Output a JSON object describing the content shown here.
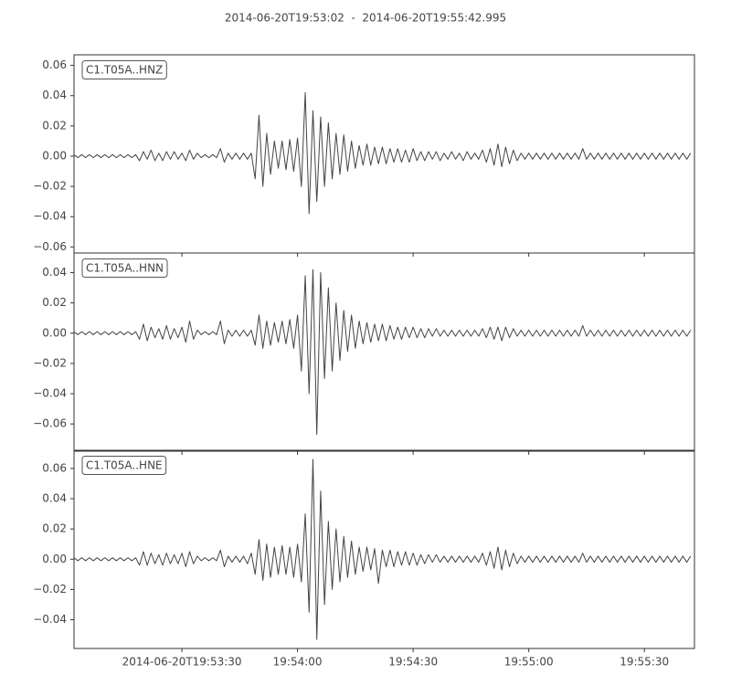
{
  "title": "2014-06-20T19:53:02  -  2014-06-20T19:55:42.995",
  "x": [
    0,
    1,
    2,
    3,
    4,
    5,
    6,
    7,
    8,
    9,
    10,
    11,
    12,
    13,
    14,
    15,
    16,
    17,
    18,
    19,
    20,
    21,
    22,
    23,
    24,
    25,
    26,
    27,
    28,
    29,
    30,
    31,
    32,
    33,
    34,
    35,
    36,
    37,
    38,
    39,
    40,
    41,
    42,
    43,
    44,
    45,
    46,
    47,
    48,
    49,
    50,
    51,
    52,
    53,
    54,
    55,
    56,
    57,
    58,
    59,
    60,
    61,
    62,
    63,
    64,
    65,
    66,
    67,
    68,
    69,
    70,
    71,
    72,
    73,
    74,
    75,
    76,
    77,
    78,
    79,
    80,
    81,
    82,
    83,
    84,
    85,
    86,
    87,
    88,
    89,
    90,
    91,
    92,
    93,
    94,
    95,
    96,
    97,
    98,
    99,
    100,
    101,
    102,
    103,
    104,
    105,
    106,
    107,
    108,
    109,
    110,
    111,
    112,
    113,
    114,
    115,
    116,
    117,
    118,
    119,
    120,
    121,
    122,
    123,
    124,
    125,
    126,
    127,
    128,
    129,
    130,
    131,
    132,
    133,
    134,
    135,
    136,
    137,
    138,
    139,
    140,
    141,
    142,
    143,
    144,
    145,
    146,
    147,
    148,
    149,
    150,
    151,
    152,
    153,
    154,
    155,
    156,
    157,
    158,
    159,
    160
  ],
  "xlim": [
    0,
    160.995
  ],
  "xticks": [
    {
      "value": 28,
      "label": "2014-06-20T19:53:30"
    },
    {
      "value": 58,
      "label": "19:54:00"
    },
    {
      "value": 88,
      "label": "19:54:30"
    },
    {
      "value": 118,
      "label": "19:55:00"
    },
    {
      "value": 148,
      "label": "19:55:30"
    }
  ],
  "chart_data": [
    {
      "type": "line",
      "ylim": [
        -0.064,
        0.067
      ],
      "yticks": [
        {
          "value": -0.06,
          "label": "−0.06"
        },
        {
          "value": -0.04,
          "label": "−0.04"
        },
        {
          "value": -0.02,
          "label": "−0.02"
        },
        {
          "value": 0,
          "label": "0.00"
        },
        0.02,
        0.04,
        0.06
      ],
      "series": [
        {
          "name": "C1.T05A..HNZ",
          "color": "#444444",
          "values": [
            0.001,
            -0.001,
            0.001,
            -0.001,
            0.001,
            -0.001,
            0.001,
            -0.001,
            0.001,
            -0.001,
            0.001,
            -0.001,
            0.001,
            -0.001,
            0.001,
            -0.001,
            0.001,
            -0.003,
            0.003,
            -0.002,
            0.004,
            -0.003,
            0.002,
            -0.003,
            0.003,
            -0.002,
            0.003,
            -0.002,
            0.002,
            -0.003,
            0.004,
            -0.002,
            0.002,
            -0.001,
            0.001,
            -0.001,
            0.001,
            -0.001,
            0.005,
            -0.004,
            0.002,
            -0.002,
            0.002,
            -0.002,
            0.002,
            -0.002,
            0.002,
            -0.015,
            0.027,
            -0.02,
            0.015,
            -0.012,
            0.01,
            -0.008,
            0.01,
            -0.009,
            0.011,
            -0.01,
            0.012,
            -0.02,
            0.042,
            -0.038,
            0.03,
            -0.03,
            0.026,
            -0.02,
            0.022,
            -0.015,
            0.015,
            -0.012,
            0.014,
            -0.01,
            0.01,
            -0.008,
            0.007,
            -0.006,
            0.008,
            -0.006,
            0.006,
            -0.005,
            0.006,
            -0.005,
            0.005,
            -0.004,
            0.005,
            -0.004,
            0.004,
            -0.004,
            0.005,
            -0.003,
            0.003,
            -0.003,
            0.003,
            -0.002,
            0.003,
            -0.003,
            0.002,
            -0.002,
            0.003,
            -0.002,
            0.002,
            -0.003,
            0.003,
            -0.002,
            0.002,
            -0.002,
            0.004,
            -0.004,
            0.005,
            -0.006,
            0.008,
            -0.007,
            0.006,
            -0.005,
            0.004,
            -0.003,
            0.002,
            -0.002,
            0.002,
            -0.002,
            0.002,
            -0.002,
            0.002,
            -0.002,
            0.002,
            -0.002,
            0.002,
            -0.002,
            0.002,
            -0.002,
            0.002,
            -0.002,
            0.005,
            -0.002,
            0.002,
            -0.002,
            0.002,
            -0.002,
            0.002,
            -0.002,
            0.002,
            -0.002,
            0.002,
            -0.002,
            0.002,
            -0.002,
            0.002,
            -0.002,
            0.002,
            -0.002,
            0.002,
            -0.002,
            0.002,
            -0.002,
            0.002,
            -0.002,
            0.002,
            -0.002,
            0.002,
            -0.002,
            0.002
          ]
        }
      ]
    },
    {
      "type": "line",
      "ylim": [
        -0.078,
        0.053
      ],
      "yticks": [
        {
          "value": -0.06,
          "label": "−0.06"
        },
        {
          "value": -0.04,
          "label": "−0.04"
        },
        {
          "value": -0.02,
          "label": "−0.02"
        },
        {
          "value": 0,
          "label": "0.00"
        },
        0.02,
        0.04
      ],
      "series": [
        {
          "name": "C1.T05A..HNN",
          "color": "#444444",
          "values": [
            0.001,
            -0.001,
            0.001,
            -0.001,
            0.001,
            -0.001,
            0.001,
            -0.001,
            0.001,
            -0.001,
            0.001,
            -0.001,
            0.001,
            -0.001,
            0.001,
            -0.001,
            0.001,
            -0.004,
            0.006,
            -0.005,
            0.004,
            -0.003,
            0.003,
            -0.004,
            0.005,
            -0.004,
            0.003,
            -0.003,
            0.004,
            -0.006,
            0.008,
            -0.004,
            0.002,
            -0.001,
            0.001,
            -0.001,
            0.001,
            -0.001,
            0.008,
            -0.007,
            0.002,
            -0.002,
            0.002,
            -0.002,
            0.002,
            -0.002,
            0.002,
            -0.008,
            0.012,
            -0.01,
            0.008,
            -0.008,
            0.007,
            -0.006,
            0.008,
            -0.007,
            0.009,
            -0.01,
            0.012,
            -0.025,
            0.038,
            -0.04,
            0.042,
            -0.067,
            0.04,
            -0.03,
            0.03,
            -0.025,
            0.02,
            -0.018,
            0.015,
            -0.012,
            0.012,
            -0.01,
            0.008,
            -0.007,
            0.007,
            -0.006,
            0.006,
            -0.005,
            0.006,
            -0.005,
            0.005,
            -0.004,
            0.004,
            -0.004,
            0.004,
            -0.003,
            0.004,
            -0.003,
            0.003,
            -0.003,
            0.003,
            -0.002,
            0.003,
            -0.002,
            0.002,
            -0.002,
            0.002,
            -0.002,
            0.002,
            -0.002,
            0.002,
            -0.002,
            0.002,
            -0.002,
            0.003,
            -0.003,
            0.004,
            -0.004,
            0.004,
            -0.005,
            0.004,
            -0.003,
            0.003,
            -0.002,
            0.002,
            -0.002,
            0.002,
            -0.002,
            0.002,
            -0.002,
            0.002,
            -0.002,
            0.002,
            -0.002,
            0.002,
            -0.002,
            0.002,
            -0.002,
            0.002,
            -0.002,
            0.005,
            -0.002,
            0.002,
            -0.002,
            0.002,
            -0.002,
            0.002,
            -0.002,
            0.002,
            -0.002,
            0.002,
            -0.002,
            0.002,
            -0.002,
            0.002,
            -0.002,
            0.002,
            -0.002,
            0.002,
            -0.002,
            0.002,
            -0.002,
            0.002,
            -0.002,
            0.002,
            -0.002,
            0.002,
            -0.002,
            0.002
          ]
        }
      ]
    },
    {
      "type": "line",
      "ylim": [
        -0.059,
        0.072
      ],
      "yticks": [
        {
          "value": -0.04,
          "label": "−0.04"
        },
        {
          "value": -0.02,
          "label": "−0.02"
        },
        {
          "value": 0,
          "label": "0.00"
        },
        0.02,
        0.04,
        0.06
      ],
      "series": [
        {
          "name": "C1.T05A..HNE",
          "color": "#444444",
          "values": [
            0.001,
            -0.001,
            0.001,
            -0.001,
            0.001,
            -0.001,
            0.001,
            -0.001,
            0.001,
            -0.001,
            0.001,
            -0.001,
            0.001,
            -0.001,
            0.001,
            -0.001,
            0.001,
            -0.004,
            0.005,
            -0.004,
            0.004,
            -0.003,
            0.003,
            -0.004,
            0.004,
            -0.003,
            0.003,
            -0.003,
            0.004,
            -0.005,
            0.005,
            -0.003,
            0.002,
            -0.001,
            0.001,
            -0.001,
            0.001,
            -0.001,
            0.006,
            -0.005,
            0.002,
            -0.002,
            0.002,
            -0.002,
            0.002,
            -0.003,
            0.004,
            -0.01,
            0.013,
            -0.014,
            0.01,
            -0.012,
            0.008,
            -0.01,
            0.009,
            -0.01,
            0.008,
            -0.012,
            0.01,
            -0.015,
            0.03,
            -0.035,
            0.066,
            -0.053,
            0.045,
            -0.03,
            0.025,
            -0.02,
            0.02,
            -0.015,
            0.015,
            -0.012,
            0.012,
            -0.01,
            0.008,
            -0.008,
            0.008,
            -0.007,
            0.007,
            -0.016,
            0.006,
            -0.005,
            0.006,
            -0.005,
            0.005,
            -0.004,
            0.005,
            -0.004,
            0.004,
            -0.004,
            0.003,
            -0.003,
            0.003,
            -0.002,
            0.003,
            -0.002,
            0.002,
            -0.002,
            0.002,
            -0.002,
            0.002,
            -0.002,
            0.002,
            -0.002,
            0.002,
            -0.002,
            0.004,
            -0.004,
            0.005,
            -0.006,
            0.008,
            -0.007,
            0.006,
            -0.005,
            0.004,
            -0.003,
            0.002,
            -0.002,
            0.002,
            -0.002,
            0.002,
            -0.002,
            0.002,
            -0.002,
            0.002,
            -0.002,
            0.002,
            -0.002,
            0.002,
            -0.002,
            0.002,
            -0.002,
            0.004,
            -0.002,
            0.002,
            -0.002,
            0.002,
            -0.002,
            0.002,
            -0.002,
            0.002,
            -0.002,
            0.002,
            -0.002,
            0.002,
            -0.002,
            0.002,
            -0.002,
            0.002,
            -0.002,
            0.002,
            -0.002,
            0.002,
            -0.002,
            0.002,
            -0.002,
            0.002,
            -0.002,
            0.002,
            -0.002,
            0.002
          ]
        }
      ]
    }
  ]
}
